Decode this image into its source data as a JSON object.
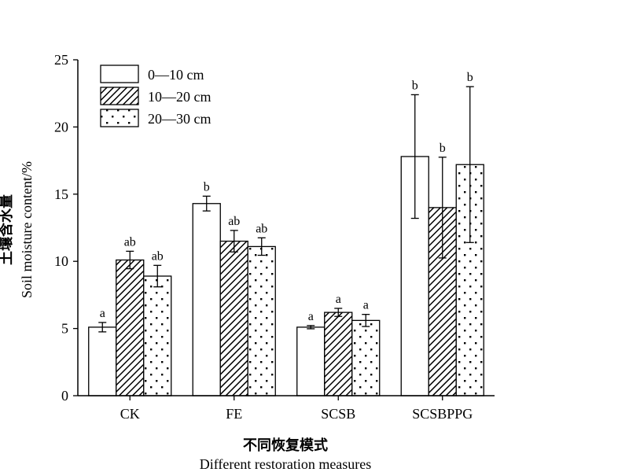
{
  "chart_data": {
    "type": "bar",
    "ylabel_cn": "土壤含水量",
    "ylabel_en": "Soil moisture content/%",
    "xlabel_cn": "不同恢复模式",
    "xlabel_en": "Different restoration measures",
    "ylim": [
      0,
      25
    ],
    "yticks": [
      0,
      5,
      10,
      15,
      20,
      25
    ],
    "categories": [
      "CK",
      "FE",
      "SCSB",
      "SCSBPPG"
    ],
    "legend_position": "top-left",
    "series": [
      {
        "name": "0—10 cm",
        "pattern": "white",
        "values": [
          5.1,
          14.3,
          5.1,
          17.8
        ],
        "errors": [
          0.35,
          0.55,
          0.12,
          4.6
        ],
        "letters": [
          "a",
          "b",
          "a",
          "b"
        ]
      },
      {
        "name": "10—20 cm",
        "pattern": "hatch",
        "values": [
          10.1,
          11.5,
          6.2,
          14.0
        ],
        "errors": [
          0.65,
          0.8,
          0.3,
          3.75
        ],
        "letters": [
          "ab",
          "ab",
          "a",
          "b"
        ]
      },
      {
        "name": "20—30 cm",
        "pattern": "dots",
        "values": [
          8.9,
          11.1,
          5.6,
          17.2
        ],
        "errors": [
          0.8,
          0.65,
          0.45,
          5.8
        ],
        "letters": [
          "ab",
          "ab",
          "a",
          "b"
        ]
      }
    ]
  }
}
